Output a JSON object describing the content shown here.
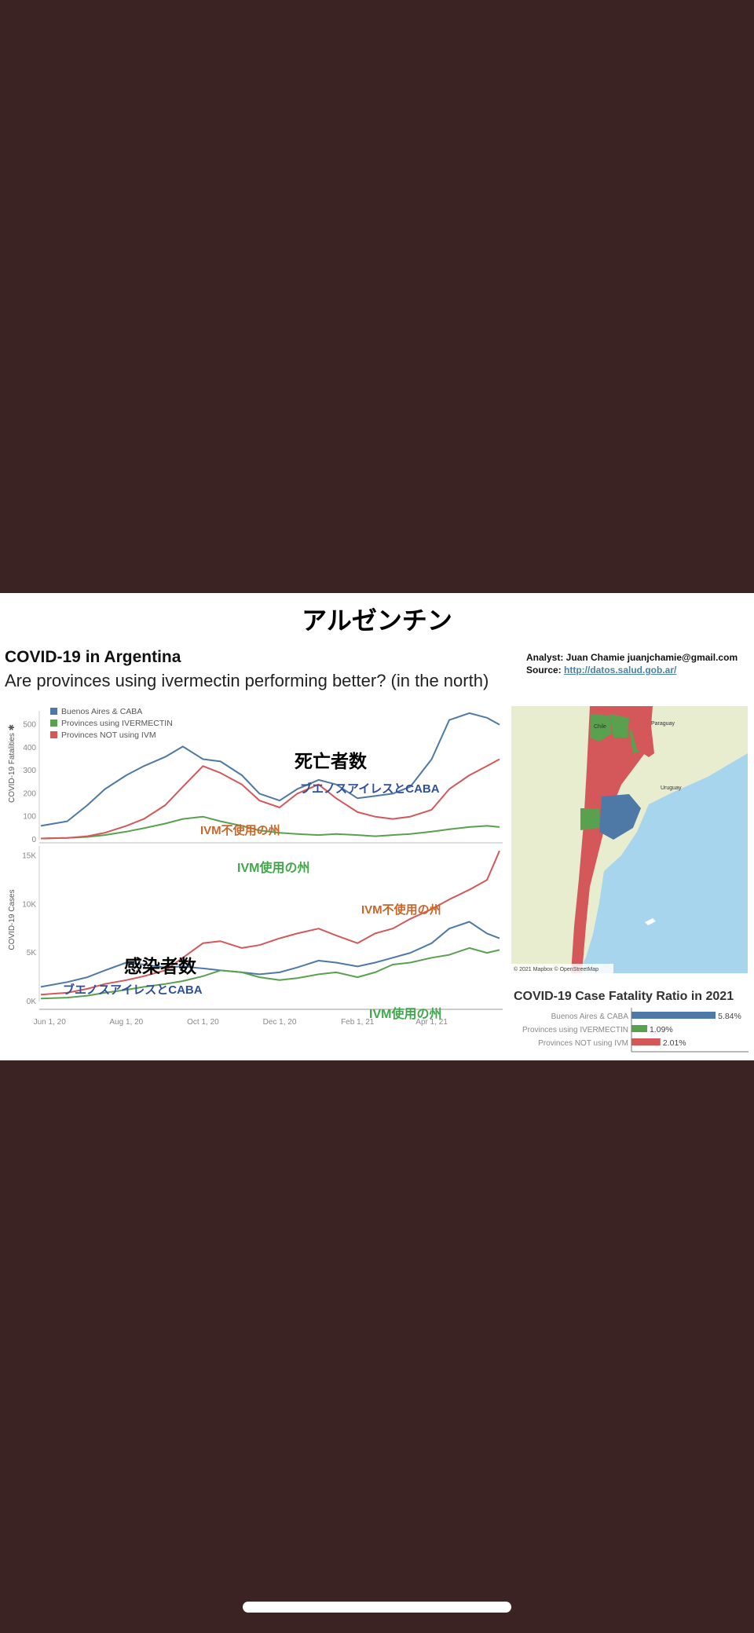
{
  "slide": {
    "jp_title": "アルゼンチン",
    "title": "COVID-19 in Argentina",
    "subtitle": "Are provinces using ivermectin performing better? (in the north)",
    "analyst": "Analyst: Juan Chamie  juanjchamie@gmail.com",
    "source_label": "Source: ",
    "source_url": "http://datos.salud.gob.ar/"
  },
  "annotations": {
    "deaths_heading": "死亡者数",
    "cases_heading": "感染者数",
    "ba_caba_top": "ブエノスアイレスとCABA",
    "ivm_not_top": "IVM不使用の州",
    "ivm_use_top": "IVM使用の州",
    "ba_caba_bottom": "ブエノスアイレスとCABA",
    "ivm_not_bottom": "IVM不使用の州",
    "ivm_use_bottom": "IVM使用の州"
  },
  "legend": {
    "items": [
      {
        "label": "Buenos Aires & CABA",
        "color": "#4e79a7"
      },
      {
        "label": "Provinces using IVERMECTIN",
        "color": "#59a14f"
      },
      {
        "label": "Provinces NOT using IVM",
        "color": "#d4585a"
      }
    ]
  },
  "map": {
    "labels": {
      "chile": "Chile",
      "paraguay": "Paraguay",
      "uruguay": "Uruguay"
    },
    "attribution": "© 2021 Mapbox © OpenStreetMap"
  },
  "colors": {
    "buenos_aires": "#4e79a7",
    "ivermectin": "#59a14f",
    "not_ivm": "#d4585a",
    "annot_orange": "#c8662a",
    "annot_green": "#3ea84a",
    "annot_blue": "#2e4f9c"
  },
  "chart_data": [
    {
      "type": "line",
      "ylabel": "COVID-19 Fatalities ✱",
      "xlabel": "",
      "x": [
        "2020-05-25",
        "2020-06-15",
        "2020-07-01",
        "2020-07-15",
        "2020-08-01",
        "2020-08-15",
        "2020-09-01",
        "2020-09-15",
        "2020-10-01",
        "2020-10-15",
        "2020-11-01",
        "2020-11-15",
        "2020-12-01",
        "2020-12-15",
        "2021-01-01",
        "2021-01-15",
        "2021-02-01",
        "2021-02-15",
        "2021-03-01",
        "2021-03-15",
        "2021-04-01",
        "2021-04-15",
        "2021-05-01",
        "2021-05-15",
        "2021-05-25"
      ],
      "ylim": [
        0,
        560
      ],
      "yticks": [
        "0",
        "100",
        "200",
        "300",
        "400",
        "500"
      ],
      "xticks": [
        "Jun 1, 20",
        "Aug 1, 20",
        "Oct 1, 20",
        "Dec 1, 20",
        "Feb 1, 21",
        "Apr 1, 21"
      ],
      "series": [
        {
          "name": "Buenos Aires & CABA",
          "values": [
            60,
            80,
            150,
            220,
            280,
            320,
            360,
            405,
            350,
            340,
            280,
            200,
            170,
            220,
            260,
            240,
            180,
            190,
            200,
            230,
            350,
            520,
            550,
            530,
            500
          ]
        },
        {
          "name": "Provinces using IVERMECTIN",
          "values": [
            5,
            8,
            12,
            20,
            35,
            50,
            70,
            90,
            100,
            80,
            60,
            40,
            30,
            25,
            20,
            25,
            20,
            15,
            20,
            25,
            35,
            45,
            55,
            60,
            55
          ]
        },
        {
          "name": "Provinces NOT using IVM",
          "values": [
            5,
            8,
            15,
            30,
            60,
            90,
            150,
            230,
            320,
            290,
            240,
            170,
            140,
            200,
            240,
            180,
            120,
            100,
            90,
            100,
            130,
            220,
            280,
            320,
            350
          ]
        }
      ]
    },
    {
      "type": "line",
      "ylabel": "COVID-19 Cases",
      "xlabel": "",
      "x": [
        "2020-05-25",
        "2020-06-15",
        "2020-07-01",
        "2020-07-15",
        "2020-08-01",
        "2020-08-15",
        "2020-09-01",
        "2020-09-15",
        "2020-10-01",
        "2020-10-15",
        "2020-11-01",
        "2020-11-15",
        "2020-12-01",
        "2020-12-15",
        "2021-01-01",
        "2021-01-15",
        "2021-02-01",
        "2021-02-15",
        "2021-03-01",
        "2021-03-15",
        "2021-04-01",
        "2021-04-15",
        "2021-05-01",
        "2021-05-15",
        "2021-05-25"
      ],
      "ylim": [
        0,
        16000
      ],
      "yticks": [
        "0K",
        "5K",
        "10K",
        "15K"
      ],
      "xticks": [
        "Jun 1, 20",
        "Aug 1, 20",
        "Oct 1, 20",
        "Dec 1, 20",
        "Feb 1, 21",
        "Apr 1, 21"
      ],
      "series": [
        {
          "name": "Buenos Aires & CABA",
          "values": [
            1500,
            2000,
            2500,
            3200,
            4000,
            3800,
            3500,
            3600,
            3400,
            3200,
            3000,
            2800,
            3000,
            3500,
            4200,
            4000,
            3600,
            4000,
            4500,
            5000,
            6000,
            7500,
            8200,
            7000,
            6500
          ]
        },
        {
          "name": "Provinces using IVERMECTIN",
          "values": [
            300,
            400,
            600,
            900,
            1200,
            1500,
            1800,
            2100,
            2600,
            3200,
            3000,
            2500,
            2200,
            2400,
            2800,
            3000,
            2500,
            3000,
            3800,
            4000,
            4500,
            4800,
            5500,
            5000,
            5300
          ]
        },
        {
          "name": "Provinces NOT using IVM",
          "values": [
            700,
            900,
            1300,
            1800,
            2200,
            2600,
            3200,
            4500,
            6000,
            6200,
            5500,
            5800,
            6500,
            7000,
            7500,
            6800,
            6000,
            7000,
            7500,
            8500,
            9500,
            10500,
            11500,
            12500,
            15500
          ]
        }
      ]
    },
    {
      "type": "bar",
      "title": "COVID-19 Case Fatality Ratio in 2021",
      "categories": [
        "Buenos Aires & CABA",
        "Provinces using IVERMECTIN",
        "Provinces NOT using IVM"
      ],
      "values": [
        5.84,
        1.09,
        2.01
      ],
      "value_labels": [
        "5.84%",
        "1.09%",
        "2.01%"
      ]
    }
  ]
}
